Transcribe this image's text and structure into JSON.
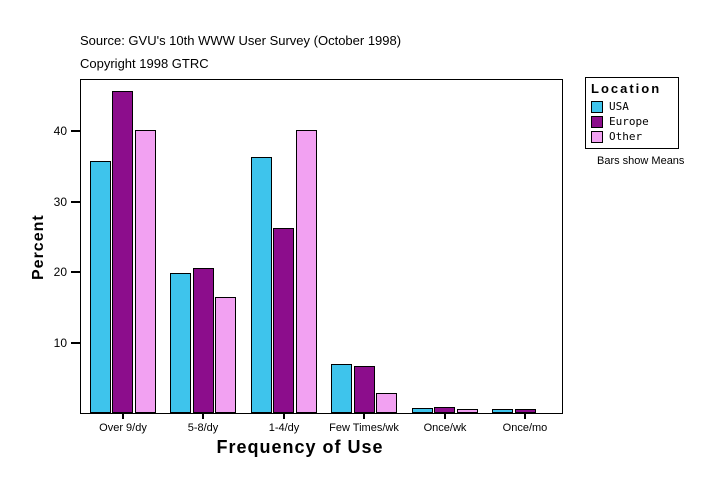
{
  "header": {
    "source_line": "Source: GVU's 10th WWW User Survey (October 1998)",
    "copyright_line": "Copyright 1998 GTRC"
  },
  "legend": {
    "title": "Location",
    "items": [
      {
        "label": "USA",
        "color": "#3EC4EC"
      },
      {
        "label": "Europe",
        "color": "#8C0D8C"
      },
      {
        "label": "Other",
        "color": "#F2A1F2"
      }
    ],
    "note": "Bars show Means"
  },
  "chart_data": {
    "type": "bar",
    "title": "Source: GVU's 10th WWW User Survey (October 1998)",
    "subtitle": "Copyright 1998 GTRC",
    "xlabel": "Frequency of Use",
    "ylabel": "Percent",
    "categories": [
      "Over 9/dy",
      "5-8/dy",
      "1-4/dy",
      "Few Times/wk",
      "Once/wk",
      "Once/mo"
    ],
    "series": [
      {
        "name": "USA",
        "color": "#3EC4EC",
        "values": [
          35.7,
          19.9,
          36.3,
          7.0,
          0.7,
          0.5
        ]
      },
      {
        "name": "Europe",
        "color": "#8C0D8C",
        "values": [
          45.7,
          20.5,
          26.2,
          6.7,
          0.9,
          0.6
        ]
      },
      {
        "name": "Other",
        "color": "#F2A1F2",
        "values": [
          40.1,
          16.5,
          40.1,
          2.8,
          0.5,
          0
        ]
      }
    ],
    "yticks": [
      10,
      20,
      30,
      40
    ],
    "ylim": [
      0,
      47.2
    ],
    "grid": false,
    "legend_position": "right",
    "annotation": "Bars show Means"
  }
}
